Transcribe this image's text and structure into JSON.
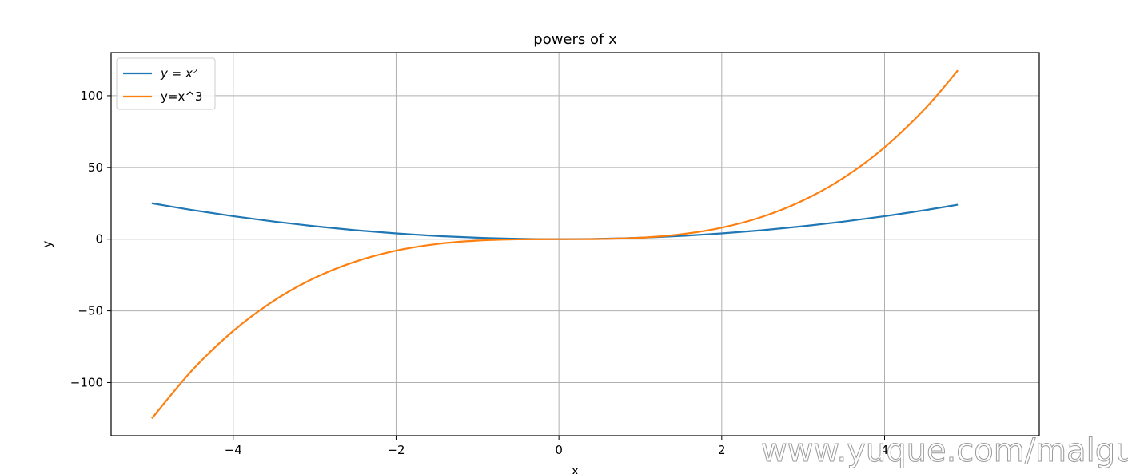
{
  "chart_data": {
    "type": "line",
    "title": "powers of x",
    "xlabel": "x",
    "ylabel": "y",
    "xlim": [
      -5.5,
      5.9
    ],
    "ylim": [
      -137,
      130
    ],
    "grid": true,
    "legend_position": "top-left",
    "x_ticks": [
      -4,
      -2,
      0,
      2,
      4
    ],
    "x_tick_labels": [
      "−4",
      "−2",
      "0",
      "2",
      "4"
    ],
    "y_ticks": [
      -100,
      -50,
      0,
      50,
      100
    ],
    "y_tick_labels": [
      "−100",
      "−50",
      "0",
      "50",
      "100"
    ],
    "x": [
      -5.0,
      -4.5,
      -4.0,
      -3.5,
      -3.0,
      -2.5,
      -2.0,
      -1.5,
      -1.0,
      -0.5,
      0.0,
      0.5,
      1.0,
      1.5,
      2.0,
      2.5,
      3.0,
      3.5,
      4.0,
      4.5,
      4.9
    ],
    "series": [
      {
        "name": "y = x²",
        "color": "#1f77b4",
        "values": [
          25.0,
          20.25,
          16.0,
          12.25,
          9.0,
          6.25,
          4.0,
          2.25,
          1.0,
          0.25,
          0.0,
          0.25,
          1.0,
          2.25,
          4.0,
          6.25,
          9.0,
          12.25,
          16.0,
          20.25,
          24.01
        ]
      },
      {
        "name": "y=x^3",
        "color": "#ff7f0e",
        "values": [
          -125.0,
          -91.13,
          -64.0,
          -42.88,
          -27.0,
          -15.63,
          -8.0,
          -3.38,
          -1.0,
          -0.13,
          0.0,
          0.13,
          1.0,
          3.38,
          8.0,
          15.63,
          27.0,
          42.88,
          64.0,
          91.13,
          117.65
        ]
      }
    ]
  },
  "watermark": "www.yuque.com/malguy"
}
